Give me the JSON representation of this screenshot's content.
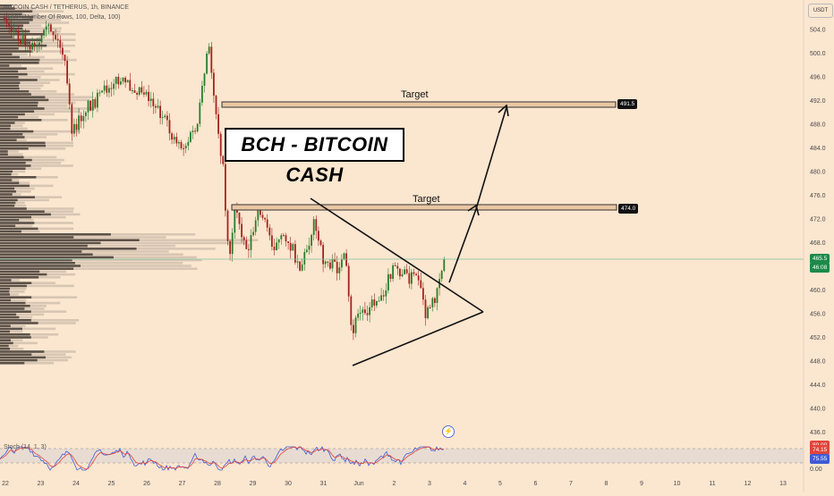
{
  "header": {
    "symbol_line": "BITCOIN CASH / TETHERUS, 1h, BINANCE",
    "indicator_line": "VRVP (Number Of Rows, 100, Delta, 100)",
    "currency": "USDT"
  },
  "title_box": "BCH - BITCOIN CASH",
  "targets": [
    {
      "label": "Target",
      "price": "491.5"
    },
    {
      "label": "Target",
      "price": "474.0"
    }
  ],
  "current_price": {
    "price": "465.5",
    "countdown": "46:08"
  },
  "price_axis": [
    "504.0",
    "500.0",
    "496.0",
    "492.0",
    "488.0",
    "484.0",
    "480.0",
    "476.0",
    "472.0",
    "468.0",
    "464.0",
    "460.0",
    "456.0",
    "452.0",
    "448.0",
    "444.0",
    "440.0",
    "436.0"
  ],
  "time_axis": [
    "22",
    "23",
    "24",
    "25",
    "26",
    "27",
    "28",
    "29",
    "30",
    "31",
    "Jun",
    "2",
    "3",
    "4",
    "5",
    "6",
    "7",
    "8",
    "9",
    "10",
    "11",
    "12",
    "13"
  ],
  "stoch": {
    "label": "Stoch (14, 1, 3)",
    "axis": [
      "100.00",
      "0.00"
    ],
    "values": [
      "80.00",
      "75.55",
      "74.15"
    ]
  },
  "colors": {
    "background": "#fbe6cf",
    "up_candle": "#2a7d2a",
    "down_candle": "#a3241f",
    "stoch_k": "#3f5cd6",
    "stoch_d": "#e1453c",
    "target_band": "#e9c7a3"
  },
  "icons": {
    "flash": "flash-icon"
  },
  "chart_data": {
    "type": "candlestick",
    "title": "BCH - BITCOIN CASH",
    "ylim": [
      434,
      508
    ],
    "x_labels": [
      "22",
      "23",
      "24",
      "25",
      "26",
      "27",
      "28",
      "29",
      "30",
      "31",
      "Jun",
      "2",
      "3",
      "4",
      "5",
      "6",
      "7",
      "8",
      "9",
      "10",
      "11",
      "12",
      "13"
    ],
    "y_ticks": [
      504,
      500,
      496,
      492,
      488,
      484,
      480,
      476,
      472,
      468,
      464,
      460,
      456,
      452,
      448,
      444,
      440,
      436
    ],
    "horizontal_levels": [
      491.5,
      474.0
    ],
    "last_price": 465.5,
    "grid": false,
    "annotations": [
      "Target",
      "Target",
      "BCH - BITCOIN CASH"
    ],
    "pattern": "symmetrical triangle with breakout arrow to 474.0 then 491.5"
  }
}
